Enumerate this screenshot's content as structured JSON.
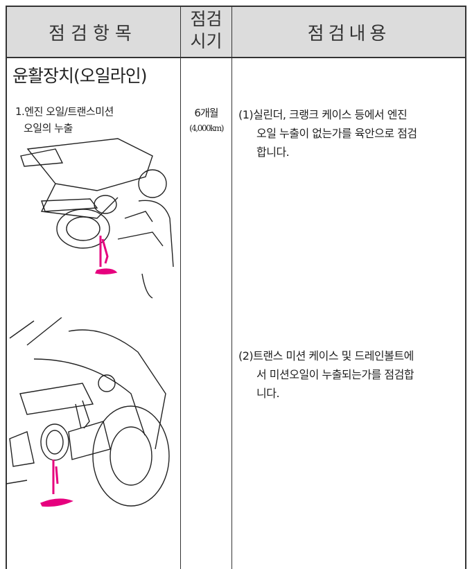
{
  "header": {
    "columns": [
      {
        "lines": [
          "점검항목"
        ]
      },
      {
        "lines": [
          "점검",
          "시기"
        ]
      },
      {
        "lines": [
          "점검내용"
        ]
      }
    ]
  },
  "section_title": "윤활장치(오일라인)",
  "item": {
    "lines": [
      "1.엔진 오일/트랜스미션",
      "오일의 누출"
    ]
  },
  "period": {
    "lines": [
      "6개월",
      "(4,000km)"
    ]
  },
  "contents": [
    {
      "lines": [
        "(1)실린더, 크랭크 케이스 등에서 엔진",
        "오일 누출이 없는가를 육안으로 점검",
        "합니다."
      ]
    },
    {
      "lines": [
        "(2)트랜스 미션 케이스 및 드레인볼트에",
        "서 미션오일이 누출되는가를 점검합",
        "니다."
      ]
    }
  ]
}
